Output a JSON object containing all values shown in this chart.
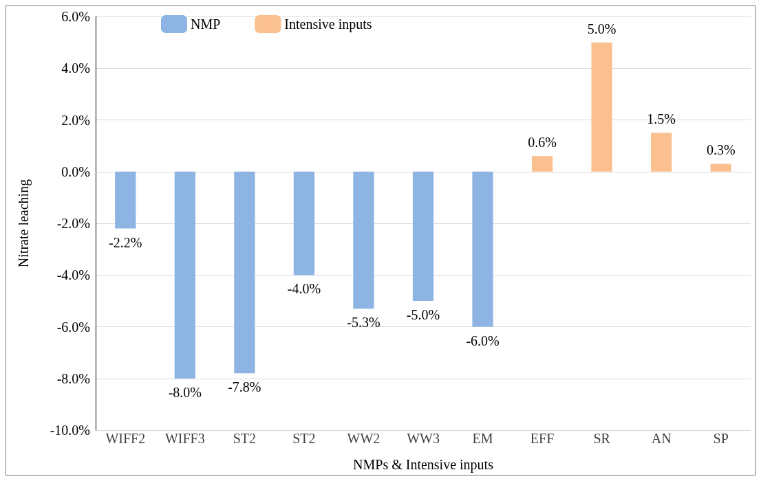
{
  "chart_data": {
    "type": "bar",
    "xlabel": "NMPs & Intensive inputs",
    "ylabel": "Nitrate leaching",
    "categories": [
      "WIFF2",
      "WIFF3",
      "ST2",
      "ST2",
      "WW2",
      "WW3",
      "EM",
      "EFF",
      "SR",
      "AN",
      "SP"
    ],
    "series": [
      {
        "name": "NMP",
        "color": "#8eb4e3",
        "values": [
          -2.2,
          -8.0,
          -7.8,
          -4.0,
          -5.3,
          -5.0,
          -6.0,
          null,
          null,
          null,
          null
        ],
        "value_labels": [
          "-2.2%",
          "-8.0%",
          "-7.8%",
          "-4.0%",
          "-5.3%",
          "-5.0%",
          "-6.0%",
          null,
          null,
          null,
          null
        ]
      },
      {
        "name": "Intensive inputs",
        "color": "#fac090",
        "values": [
          null,
          null,
          null,
          null,
          null,
          null,
          null,
          0.6,
          5.0,
          1.5,
          0.3
        ],
        "value_labels": [
          null,
          null,
          null,
          null,
          null,
          null,
          null,
          "0.6%",
          "5.0%",
          "1.5%",
          "0.3%"
        ]
      }
    ],
    "ylim": [
      -10,
      6
    ],
    "yticks": [
      {
        "value": -10,
        "label": "-10.0%"
      },
      {
        "value": -8,
        "label": "-8.0%"
      },
      {
        "value": -6,
        "label": "-6.0%"
      },
      {
        "value": -4,
        "label": "-4.0%"
      },
      {
        "value": -2,
        "label": "-2.0%"
      },
      {
        "value": 0,
        "label": "0.0%"
      },
      {
        "value": 2,
        "label": "2.0%"
      },
      {
        "value": 4,
        "label": "4.0%"
      },
      {
        "value": 6,
        "label": "6.0%"
      }
    ],
    "grid": "y",
    "legend": "top left"
  }
}
